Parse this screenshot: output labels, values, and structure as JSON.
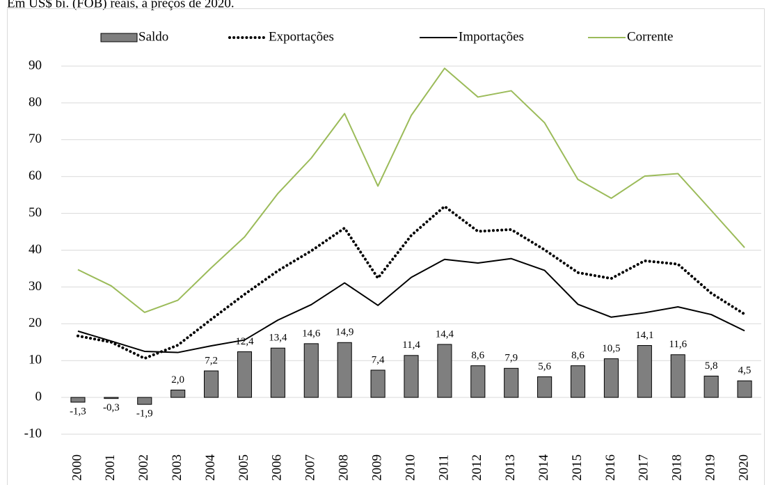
{
  "chart_data": {
    "type": "combo",
    "subtitle": "Em US$ bi. (FOB) reais, a preços de 2020.",
    "categories": [
      "2000",
      "2001",
      "2002",
      "2003",
      "2004",
      "2005",
      "2006",
      "2007",
      "2008",
      "2009",
      "2010",
      "2011",
      "2012",
      "2013",
      "2014",
      "2015",
      "2016",
      "2017",
      "2018",
      "2019",
      "2020"
    ],
    "series": [
      {
        "name": "Saldo",
        "type": "bar",
        "color": "#7f7f7f",
        "negative_label_color": "#ff0000",
        "values": [
          -1.3,
          -0.3,
          -1.9,
          2.0,
          7.2,
          12.4,
          13.4,
          14.6,
          14.9,
          7.4,
          11.4,
          14.4,
          8.6,
          7.9,
          5.6,
          8.6,
          10.5,
          14.1,
          11.6,
          5.8,
          4.5
        ],
        "value_labels": [
          "-1,3",
          "-0,3",
          "-1,9",
          "2,0",
          "7,2",
          "12,4",
          "13,4",
          "14,6",
          "14,9",
          "7,4",
          "11,4",
          "14,4",
          "8,6",
          "7,9",
          "5,6",
          "8,6",
          "10,5",
          "14,1",
          "11,6",
          "5,8",
          "4,5"
        ]
      },
      {
        "name": "Exportações",
        "type": "line",
        "dash": "dotted",
        "color": "#000000",
        "values": [
          16.7,
          15.0,
          10.6,
          14.2,
          21.2,
          28.0,
          34.4,
          39.8,
          46.0,
          32.4,
          44.0,
          51.9,
          45.1,
          45.6,
          40.1,
          33.9,
          32.3,
          37.1,
          36.2,
          28.3,
          22.6
        ]
      },
      {
        "name": "Importações",
        "type": "line",
        "dash": "solid",
        "color": "#000000",
        "values": [
          18.0,
          15.3,
          12.5,
          12.2,
          14.0,
          15.6,
          21.0,
          25.2,
          31.1,
          25.0,
          32.6,
          37.5,
          36.5,
          37.7,
          34.5,
          25.3,
          21.8,
          23.0,
          24.6,
          22.5,
          18.1
        ]
      },
      {
        "name": "Corrente",
        "type": "line",
        "dash": "solid",
        "color": "#9bbb59",
        "values": [
          34.7,
          30.3,
          23.1,
          26.4,
          35.2,
          43.6,
          55.4,
          65.0,
          77.1,
          57.4,
          76.6,
          89.4,
          81.6,
          83.3,
          74.6,
          59.2,
          54.1,
          60.1,
          60.8,
          50.8,
          40.7
        ]
      }
    ],
    "ylim": [
      -10,
      90
    ],
    "yticks": [
      -10,
      0,
      10,
      20,
      30,
      40,
      50,
      60,
      70,
      80,
      90
    ],
    "grid": true,
    "legend": "top"
  }
}
